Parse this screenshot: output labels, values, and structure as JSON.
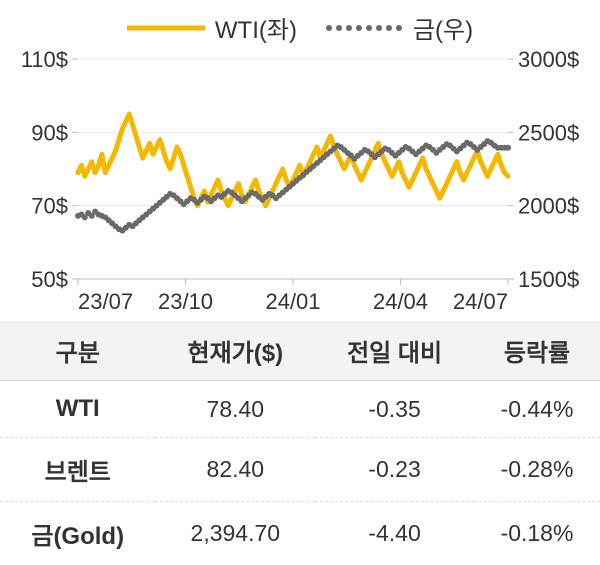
{
  "legend": {
    "series1": {
      "label": "WTI(좌)",
      "color": "#f5b800",
      "style": "solid",
      "width": 5
    },
    "series2": {
      "label": "금(우)",
      "color": "#6a6a6a",
      "style": "dotted",
      "width": 4,
      "dot_radius": 3
    }
  },
  "chart": {
    "background": "#ffffff",
    "axis_color": "#333333",
    "grid_color": "#e8e8e8",
    "tick_font_size": 22,
    "left_axis": {
      "min": 50,
      "max": 110,
      "ticks": [
        50,
        70,
        90,
        110
      ],
      "tick_labels": [
        "50$",
        "70$",
        "90$",
        "110$"
      ]
    },
    "right_axis": {
      "min": 1500,
      "max": 3000,
      "ticks": [
        1500,
        2000,
        2500,
        3000
      ],
      "tick_labels": [
        "1500$",
        "2000$",
        "2500$",
        "3000$"
      ]
    },
    "x_axis": {
      "ticks": [
        "23/07",
        "23/10",
        "24/01",
        "24/04",
        "24/07"
      ]
    },
    "wti_series": [
      79,
      81,
      78,
      80,
      82,
      79,
      81,
      84,
      79,
      81,
      83,
      85,
      88,
      91,
      93,
      95,
      92,
      89,
      86,
      83,
      85,
      87,
      84,
      86,
      88,
      85,
      82,
      80,
      83,
      86,
      84,
      81,
      78,
      75,
      72,
      70,
      72,
      74,
      71,
      73,
      75,
      77,
      74,
      72,
      70,
      72,
      74,
      76,
      73,
      71,
      73,
      75,
      77,
      74,
      72,
      70,
      72,
      74,
      76,
      78,
      80,
      77,
      75,
      77,
      79,
      81,
      78,
      80,
      82,
      84,
      86,
      83,
      85,
      87,
      89,
      86,
      84,
      82,
      80,
      82,
      84,
      81,
      79,
      77,
      79,
      81,
      83,
      85,
      87,
      84,
      82,
      80,
      78,
      80,
      82,
      79,
      77,
      75,
      77,
      79,
      81,
      83,
      80,
      78,
      76,
      74,
      72,
      74,
      76,
      78,
      80,
      82,
      79,
      77,
      79,
      81,
      83,
      85,
      82,
      80,
      78,
      80,
      82,
      84,
      81,
      79,
      78
    ],
    "gold_series": [
      1930,
      1940,
      1920,
      1950,
      1930,
      1960,
      1940,
      1930,
      1920,
      1900,
      1880,
      1860,
      1840,
      1830,
      1850,
      1870,
      1860,
      1880,
      1900,
      1920,
      1940,
      1960,
      1980,
      2000,
      2020,
      2040,
      2060,
      2080,
      2070,
      2050,
      2030,
      2010,
      2030,
      2050,
      2040,
      2020,
      2040,
      2060,
      2050,
      2030,
      2050,
      2070,
      2060,
      2080,
      2100,
      2090,
      2070,
      2050,
      2030,
      2050,
      2070,
      2090,
      2080,
      2060,
      2040,
      2060,
      2080,
      2070,
      2050,
      2070,
      2090,
      2110,
      2130,
      2150,
      2170,
      2190,
      2210,
      2230,
      2250,
      2270,
      2290,
      2310,
      2330,
      2350,
      2370,
      2390,
      2410,
      2400,
      2380,
      2360,
      2340,
      2320,
      2340,
      2360,
      2380,
      2370,
      2350,
      2330,
      2350,
      2370,
      2390,
      2380,
      2360,
      2340,
      2360,
      2380,
      2400,
      2390,
      2370,
      2350,
      2370,
      2390,
      2410,
      2400,
      2380,
      2360,
      2380,
      2400,
      2420,
      2410,
      2390,
      2370,
      2390,
      2410,
      2430,
      2420,
      2400,
      2380,
      2400,
      2420,
      2440,
      2430,
      2410,
      2395,
      2395,
      2395,
      2395
    ]
  },
  "table": {
    "headers": [
      "구분",
      "현재가($)",
      "전일 대비",
      "등락률"
    ],
    "rows": [
      {
        "name": "WTI",
        "price": "78.40",
        "diff": "-0.35",
        "pct": "-0.44%"
      },
      {
        "name": "브렌트",
        "price": "82.40",
        "diff": "-0.23",
        "pct": "-0.28%"
      },
      {
        "name": "금(Gold)",
        "price": "2,394.70",
        "diff": "-4.40",
        "pct": "-0.18%"
      }
    ],
    "border_color": "#d9d9d9",
    "header_bg": "#f3f3f3"
  }
}
